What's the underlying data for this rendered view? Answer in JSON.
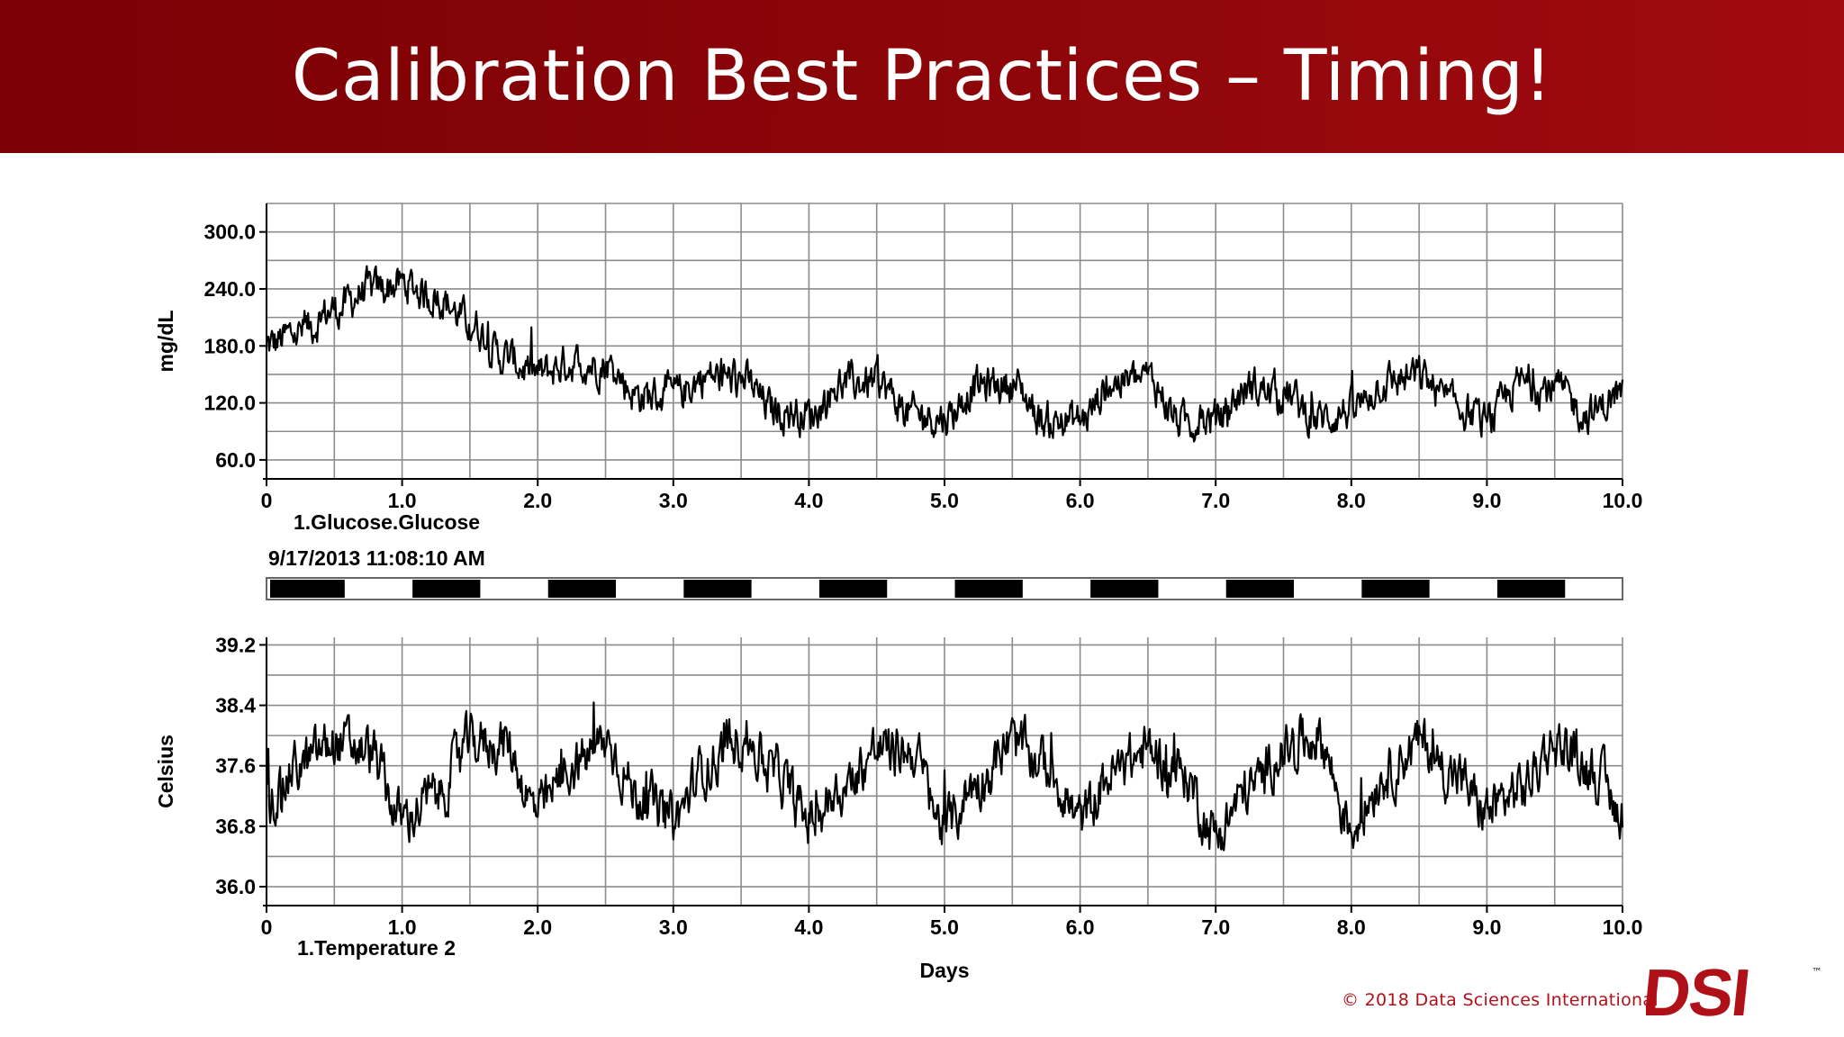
{
  "slide": {
    "title": "Calibration Best Practices – Timing!",
    "copyright": "© 2018 Data Sciences International",
    "logo_text": "DSI",
    "trademark": "™"
  },
  "colors": {
    "banner": "#8a0508",
    "trace": "#000000",
    "grid": "#8c8c8c",
    "brand": "#b01018"
  },
  "chart_data": [
    {
      "type": "line",
      "series": [
        {
          "name": "1.Glucose.Glucose"
        }
      ],
      "ylabel": "mg/dL",
      "xlim": [
        0,
        10
      ],
      "ylim": [
        40,
        330
      ],
      "yticks": [
        60,
        120,
        180,
        240,
        300
      ],
      "ytick_labels": [
        "60.0",
        "120.0",
        "180.0",
        "240.0",
        "300.0"
      ],
      "xticks": [
        0,
        1,
        2,
        3,
        4,
        5,
        6,
        7,
        8,
        9,
        10
      ],
      "xtick_labels": [
        "0",
        "1.0",
        "2.0",
        "3.0",
        "4.0",
        "5.0",
        "6.0",
        "7.0",
        "8.0",
        "9.0",
        "10.0"
      ],
      "grid": true,
      "x": [
        0,
        0.25,
        0.5,
        0.75,
        1.0,
        1.25,
        1.5,
        1.75,
        2.0,
        2.25,
        2.5,
        2.75,
        3.0,
        3.25,
        3.5,
        3.75,
        4.0,
        4.25,
        4.5,
        4.75,
        5.0,
        5.25,
        5.5,
        5.75,
        6.0,
        6.25,
        6.5,
        6.75,
        7.0,
        7.25,
        7.5,
        7.75,
        8.0,
        8.25,
        8.5,
        8.75,
        9.0,
        9.25,
        9.5,
        9.75,
        10.0
      ],
      "y": [
        180,
        195,
        218,
        238,
        245,
        232,
        205,
        168,
        150,
        162,
        160,
        128,
        128,
        148,
        145,
        112,
        108,
        140,
        142,
        108,
        105,
        138,
        140,
        100,
        102,
        142,
        145,
        100,
        103,
        136,
        130,
        103,
        112,
        142,
        148,
        118,
        100,
        140,
        135,
        108,
        130
      ]
    },
    {
      "type": "line",
      "series": [
        {
          "name": "1.Temperature 2"
        }
      ],
      "ylabel": "Celsius",
      "xlabel": "Days",
      "xlim": [
        0,
        10
      ],
      "ylim": [
        35.75,
        39.3
      ],
      "yticks": [
        36.0,
        36.8,
        37.6,
        38.4,
        39.2
      ],
      "ytick_labels": [
        "36.0",
        "36.8",
        "37.6",
        "38.4",
        "39.2"
      ],
      "xticks": [
        0,
        1,
        2,
        3,
        4,
        5,
        6,
        7,
        8,
        9,
        10
      ],
      "xtick_labels": [
        "0",
        "1.0",
        "2.0",
        "3.0",
        "4.0",
        "5.0",
        "6.0",
        "7.0",
        "8.0",
        "9.0",
        "10.0"
      ],
      "grid": true,
      "x": [
        0,
        0.25,
        0.5,
        0.75,
        1.0,
        1.25,
        1.5,
        1.75,
        2.0,
        2.25,
        2.5,
        2.75,
        3.0,
        3.25,
        3.5,
        3.75,
        4.0,
        4.25,
        4.5,
        4.75,
        5.0,
        5.25,
        5.5,
        5.75,
        6.0,
        6.25,
        6.5,
        6.75,
        7.0,
        7.25,
        7.5,
        7.75,
        8.0,
        8.25,
        8.5,
        8.75,
        9.0,
        9.25,
        9.5,
        9.75,
        10.0
      ],
      "y": [
        37.1,
        37.6,
        37.9,
        37.8,
        36.9,
        37.2,
        37.9,
        37.9,
        37.0,
        37.6,
        37.9,
        37.2,
        36.9,
        37.6,
        38.0,
        37.5,
        36.9,
        37.3,
        37.8,
        37.8,
        36.8,
        37.4,
        37.9,
        37.6,
        36.9,
        37.5,
        37.8,
        37.5,
        36.7,
        37.3,
        37.8,
        38.0,
        36.8,
        37.5,
        37.9,
        37.5,
        37.0,
        37.3,
        37.9,
        37.6,
        37.0
      ]
    }
  ],
  "timestamp": "9/17/2013 11:08:10 AM",
  "light_dark_bar": {
    "dark_periods": [
      [
        0.0,
        0.55
      ],
      [
        1.05,
        1.55
      ],
      [
        2.05,
        2.55
      ],
      [
        3.05,
        3.55
      ],
      [
        4.05,
        4.55
      ],
      [
        5.05,
        5.55
      ],
      [
        6.05,
        6.55
      ],
      [
        7.05,
        7.55
      ],
      [
        8.05,
        8.55
      ],
      [
        9.05,
        9.55
      ]
    ]
  }
}
